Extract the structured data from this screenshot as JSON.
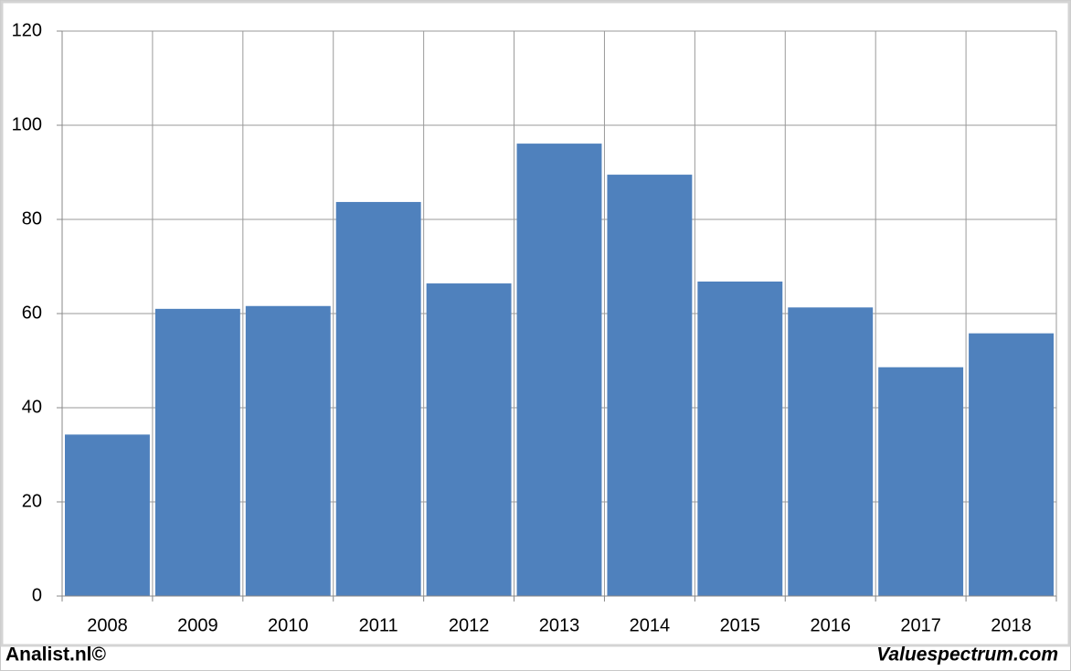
{
  "chart_data": {
    "type": "bar",
    "categories": [
      "2008",
      "2009",
      "2010",
      "2011",
      "2012",
      "2013",
      "2014",
      "2015",
      "2016",
      "2017",
      "2018"
    ],
    "values": [
      34.3,
      61,
      61.6,
      83.7,
      66.4,
      96.1,
      89.5,
      66.8,
      61.3,
      48.6,
      55.8
    ],
    "color": "#4f81bd",
    "ylim": [
      0,
      120
    ],
    "yticks": [
      0,
      20,
      40,
      60,
      80,
      100,
      120
    ],
    "grid": true
  },
  "footer": {
    "left": "Analist.nl©",
    "right": "Valuespectrum.com"
  }
}
